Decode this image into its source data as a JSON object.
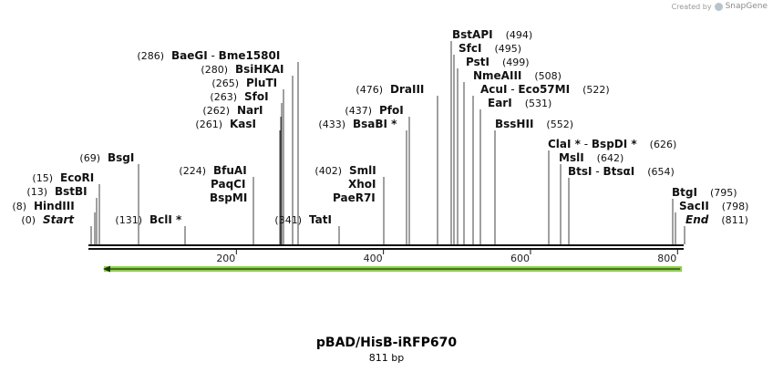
{
  "credit": {
    "created_by": "Created by",
    "brand": "SnapGene"
  },
  "map": {
    "name": "pBAD/HisB-iRFP670",
    "length_label": "811 bp",
    "length": 811,
    "ruler_ticks": [
      {
        "pos": 200,
        "label": "200"
      },
      {
        "pos": 400,
        "label": "400"
      },
      {
        "pos": 600,
        "label": "600"
      },
      {
        "pos": 800,
        "label": "800"
      }
    ],
    "feature_arrow": {
      "start": 0,
      "end": 811,
      "direction": "reverse",
      "color": "#8fd14f"
    },
    "sites": [
      {
        "pos": "(0)",
        "enzymes": [
          {
            "name": "Start",
            "italic": true
          }
        ]
      },
      {
        "pos": "(8)",
        "enzymes": [
          {
            "name": "HindIII"
          }
        ]
      },
      {
        "pos": "(13)",
        "enzymes": [
          {
            "name": "BstBI"
          }
        ]
      },
      {
        "pos": "(15)",
        "enzymes": [
          {
            "name": "EcoRI"
          }
        ]
      },
      {
        "pos": "(69)",
        "enzymes": [
          {
            "name": "BsgI"
          }
        ]
      },
      {
        "pos": "(131)",
        "enzymes": [
          {
            "name": "BclI",
            "star": "*"
          }
        ]
      },
      {
        "pos": "(224)",
        "enzymes": [
          {
            "name": "BfuAI"
          }
        ]
      },
      {
        "pos": "",
        "enzymes": [
          {
            "name": "PaqCI"
          }
        ]
      },
      {
        "pos": "",
        "enzymes": [
          {
            "name": "BspMI"
          }
        ]
      },
      {
        "pos": "(261)",
        "enzymes": [
          {
            "name": "KasI"
          }
        ]
      },
      {
        "pos": "(262)",
        "enzymes": [
          {
            "name": "NarI"
          }
        ]
      },
      {
        "pos": "(263)",
        "enzymes": [
          {
            "name": "SfoI"
          }
        ]
      },
      {
        "pos": "(265)",
        "enzymes": [
          {
            "name": "PluTI"
          }
        ]
      },
      {
        "pos": "(280)",
        "enzymes": [
          {
            "name": "BsiHKAI"
          }
        ]
      },
      {
        "pos": "(286)",
        "enzymes": [
          {
            "name": "BaeGI"
          },
          {
            "name": "Bme1580I"
          }
        ]
      },
      {
        "pos": "(341)",
        "enzymes": [
          {
            "name": "TatI"
          }
        ]
      },
      {
        "pos": "(402)",
        "enzymes": [
          {
            "name": "SmlI"
          }
        ]
      },
      {
        "pos": "",
        "enzymes": [
          {
            "name": "XhoI"
          }
        ]
      },
      {
        "pos": "",
        "enzymes": [
          {
            "name": "PaeR7I"
          }
        ]
      },
      {
        "pos": "(433)",
        "enzymes": [
          {
            "name": "BsaBI",
            "star": "*"
          }
        ]
      },
      {
        "pos": "(437)",
        "enzymes": [
          {
            "name": "PfoI"
          }
        ]
      },
      {
        "pos": "(476)",
        "enzymes": [
          {
            "name": "DraIII"
          }
        ]
      },
      {
        "pos": "(494)",
        "enzymes": [
          {
            "name": "BstAPI"
          }
        ]
      },
      {
        "pos": "(495)",
        "enzymes": [
          {
            "name": "SfcI"
          }
        ]
      },
      {
        "pos": "(499)",
        "enzymes": [
          {
            "name": "PstI"
          }
        ]
      },
      {
        "pos": "(508)",
        "enzymes": [
          {
            "name": "NmeAIII"
          }
        ]
      },
      {
        "pos": "(522)",
        "enzymes": [
          {
            "name": "AcuI"
          },
          {
            "name": "Eco57MI"
          }
        ]
      },
      {
        "pos": "(531)",
        "enzymes": [
          {
            "name": "EarI"
          }
        ]
      },
      {
        "pos": "(552)",
        "enzymes": [
          {
            "name": "BssHII"
          }
        ]
      },
      {
        "pos": "(626)",
        "enzymes": [
          {
            "name": "ClaI",
            "star": "*"
          },
          {
            "name": "BspDI",
            "star": "*"
          }
        ]
      },
      {
        "pos": "(642)",
        "enzymes": [
          {
            "name": "MslI"
          }
        ]
      },
      {
        "pos": "(654)",
        "enzymes": [
          {
            "name": "BtsI"
          },
          {
            "name": "BtsαI"
          }
        ]
      },
      {
        "pos": "(795)",
        "enzymes": [
          {
            "name": "BtgI"
          }
        ]
      },
      {
        "pos": "(798)",
        "enzymes": [
          {
            "name": "SacII"
          }
        ]
      },
      {
        "pos": "(811)",
        "enzymes": [
          {
            "name": "End",
            "italic": true
          }
        ]
      }
    ]
  }
}
